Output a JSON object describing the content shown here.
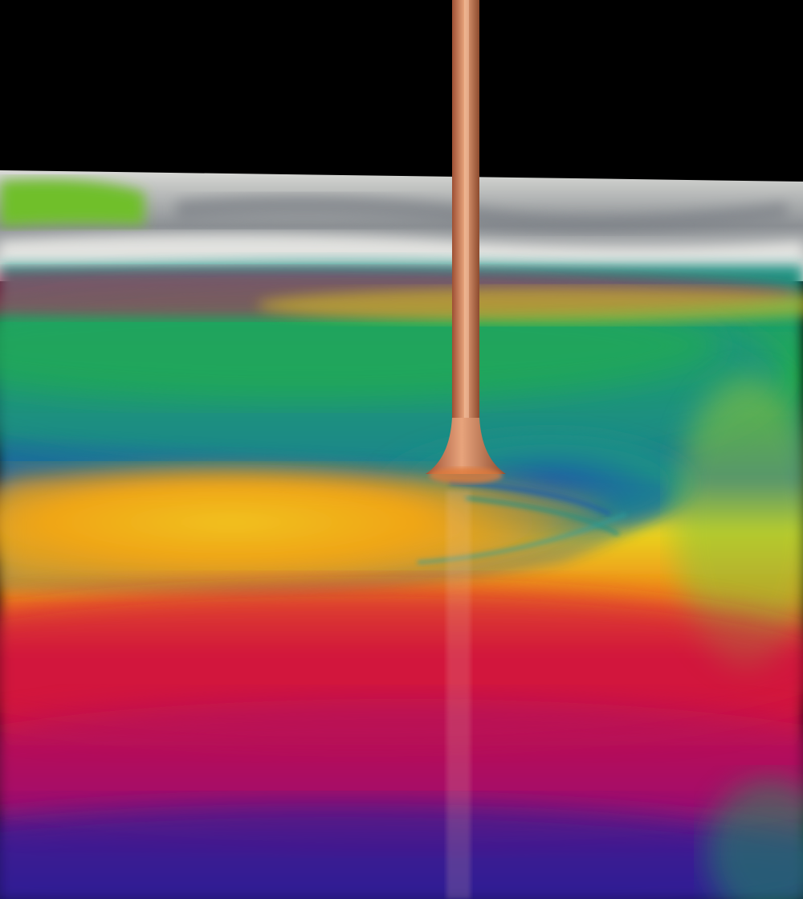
{
  "scene": {
    "subject": "stream-into-swirl",
    "palette": {
      "background": "#000000",
      "stream": "#c8744f",
      "stream_highlight": "#e8a47c",
      "foam": "#e9e9e6",
      "foam_shadow": "#8c9094",
      "green": "#23b04a",
      "teal": "#1b8f86",
      "blue": "#1a5fa8",
      "yellow": "#e9d51f",
      "orange": "#f08a17",
      "red": "#d2123c",
      "magenta": "#a5106a",
      "purple": "#5a1a8c",
      "indigo": "#2e1f95"
    }
  }
}
